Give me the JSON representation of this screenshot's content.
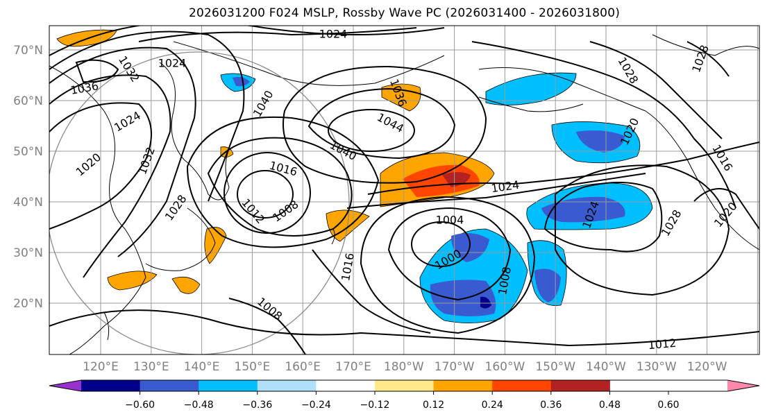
{
  "title": "2026031200 F024 MSLP, Rossby Wave PC (2026031400 - 2026031800)",
  "map": {
    "lat_labels": [
      "70°N",
      "60°N",
      "50°N",
      "40°N",
      "30°N",
      "20°N"
    ],
    "lon_labels": [
      "120°E",
      "130°E",
      "140°E",
      "150°E",
      "160°E",
      "170°E",
      "180°W",
      "170°W",
      "160°W",
      "150°W",
      "140°W",
      "130°W",
      "120°W"
    ],
    "isobar_labels": [
      "1024",
      "1024",
      "1036",
      "1032",
      "1024",
      "1020",
      "1032",
      "1040",
      "1036",
      "1044",
      "1040",
      "1016",
      "1012",
      "1008",
      "1028",
      "1024",
      "1004",
      "1000",
      "1008",
      "1016",
      "1008",
      "1012",
      "1024",
      "1028",
      "1020",
      "1028",
      "1016",
      "1028",
      "1020"
    ]
  },
  "colorbar": {
    "ticks": [
      "−0.60",
      "−0.48",
      "−0.36",
      "−0.24",
      "−0.12",
      "0.12",
      "0.24",
      "0.36",
      "0.48",
      "0.60"
    ],
    "colors": [
      "#9932cc",
      "#00008b",
      "#3a5bd0",
      "#00bfff",
      "#b0e0f8",
      "#ffffff",
      "#ffe98a",
      "#ffa500",
      "#ff4500",
      "#b22222",
      "#ff88aa"
    ]
  }
}
